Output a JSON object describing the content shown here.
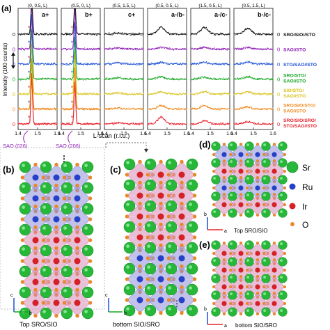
{
  "panel_labels": [
    "(a)",
    "(b)",
    "(c)",
    "(d)",
    "(e)"
  ],
  "colors": {
    "red": "#e8252f",
    "orange": "#f08a1e",
    "yellow": "#d8c21a",
    "green": "#12a51c",
    "blue": "#1c4fd6",
    "purple": "#8f1fb5",
    "black": "#111111",
    "sr": "#27b83a",
    "ru": "#2640c8",
    "ir": "#d42026",
    "o": "#e8882a",
    "oct_blue": "#8e8ed8",
    "oct_pink": "#d68ab6"
  },
  "chart_data": {
    "type": "line",
    "ylabel": "Intensity (100 counts)",
    "xlabel": "L-scan (r.l.u.)",
    "xlim": [
      1.4,
      1.6
    ],
    "x_ticks": [
      "1.4",
      "1.5",
      "1.6"
    ],
    "offset_ticks": [
      "0",
      "0",
      "0",
      "0",
      "0",
      "0",
      "0"
    ],
    "subplots": [
      {
        "header": "(0, 0.5, L)",
        "label": "a",
        "sup": "+",
        "peak_x": 1.47
      },
      {
        "header": "(0.5, 0, L)",
        "label": "b",
        "sup": "+",
        "peak_x": 1.47
      },
      {
        "header": "(0.5, 1.5, L)",
        "label": "c",
        "sup": "+",
        "peak_x": 1.47
      },
      {
        "header": "(0.5, 0.5, L)",
        "label": "a",
        "label2": "b",
        "sup": "-",
        "peak_x": 1.47
      },
      {
        "header": "(1.5, 0.5, L)",
        "label": "a",
        "label2": "c",
        "sup": "-",
        "peak_x": 1.47
      },
      {
        "header": "(0.5, 1.5, L)",
        "label": "b",
        "label2": "c",
        "sup": "-",
        "peak_x": 1.47
      }
    ],
    "series": [
      {
        "name": "SRO/SIO/SRO/STO/SAO//STO",
        "color": "#e8252f",
        "peaks": [
          6.0,
          5.0,
          0.5,
          3.0,
          1.5,
          1.0
        ]
      },
      {
        "name": "SRO/SIO/STO/SAO//STO",
        "color": "#f08a1e",
        "peaks": [
          6.0,
          5.0,
          0.5,
          1.5,
          1.5,
          1.0
        ]
      },
      {
        "name": "SIO/STO/SAO//STO",
        "color": "#d8c21a",
        "peaks": [
          6.0,
          5.0,
          0.5,
          1.0,
          1.0,
          1.0
        ]
      },
      {
        "name": "SRO/STO/SAO//STO",
        "color": "#12a51c",
        "peaks": [
          6.0,
          5.0,
          0.5,
          1.0,
          0.8,
          1.0
        ]
      },
      {
        "name": "STO/SAO//STO",
        "color": "#1c4fd6",
        "peaks": [
          6.0,
          5.0,
          0.5,
          0.8,
          0.8,
          0.8
        ]
      },
      {
        "name": "SAO//STO",
        "color": "#8f1fb5",
        "peaks": [
          6.0,
          5.0,
          0.5,
          0.8,
          0.8,
          0.8
        ]
      },
      {
        "name": "SRO/SIO//STO",
        "color": "#111111",
        "peaks": [
          6.0,
          5.0,
          0.5,
          3.0,
          3.0,
          2.5
        ]
      }
    ],
    "annotations": [
      "SAO (026)",
      "SAO (206)"
    ]
  },
  "legend": {
    "sr": "Sr",
    "ru": "Ru",
    "ir": "Ir",
    "o": "O"
  },
  "captions": {
    "b": "Top SRO/SIO",
    "c": "bottom SIO/SRO",
    "d": "Top SRO/SIO",
    "e": "bottom SIO/SRO"
  },
  "axes": {
    "c": "c",
    "b": "b",
    "a": "a"
  },
  "ellipsis": "⋮"
}
